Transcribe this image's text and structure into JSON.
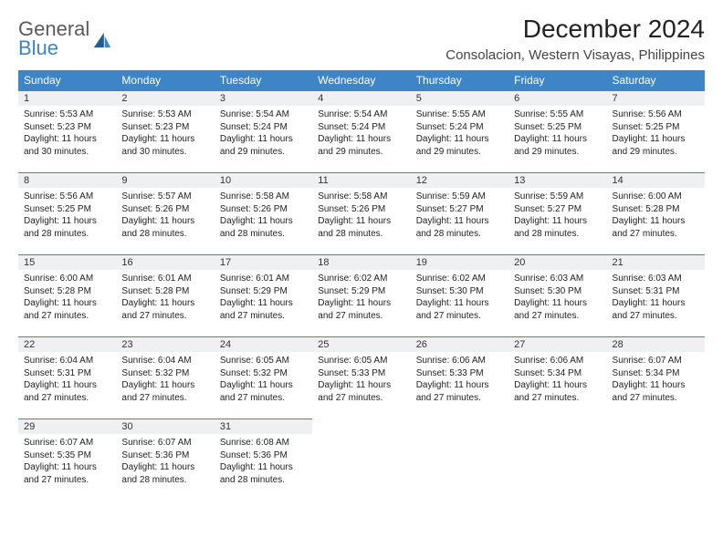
{
  "logo": {
    "line1": "General",
    "line2": "Blue"
  },
  "title": "December 2024",
  "location": "Consolacion, Western Visayas, Philippines",
  "colors": {
    "header_bg": "#3d85c6",
    "header_text": "#ffffff",
    "daynum_bg": "#eef0f1",
    "row_border": "#3d85c6",
    "logo_gray": "#5a5a5a",
    "logo_blue": "#3d85c6"
  },
  "weekdays": [
    "Sunday",
    "Monday",
    "Tuesday",
    "Wednesday",
    "Thursday",
    "Friday",
    "Saturday"
  ],
  "weeks": [
    [
      {
        "n": "1",
        "sr": "Sunrise: 5:53 AM",
        "ss": "Sunset: 5:23 PM",
        "d1": "Daylight: 11 hours",
        "d2": "and 30 minutes."
      },
      {
        "n": "2",
        "sr": "Sunrise: 5:53 AM",
        "ss": "Sunset: 5:23 PM",
        "d1": "Daylight: 11 hours",
        "d2": "and 30 minutes."
      },
      {
        "n": "3",
        "sr": "Sunrise: 5:54 AM",
        "ss": "Sunset: 5:24 PM",
        "d1": "Daylight: 11 hours",
        "d2": "and 29 minutes."
      },
      {
        "n": "4",
        "sr": "Sunrise: 5:54 AM",
        "ss": "Sunset: 5:24 PM",
        "d1": "Daylight: 11 hours",
        "d2": "and 29 minutes."
      },
      {
        "n": "5",
        "sr": "Sunrise: 5:55 AM",
        "ss": "Sunset: 5:24 PM",
        "d1": "Daylight: 11 hours",
        "d2": "and 29 minutes."
      },
      {
        "n": "6",
        "sr": "Sunrise: 5:55 AM",
        "ss": "Sunset: 5:25 PM",
        "d1": "Daylight: 11 hours",
        "d2": "and 29 minutes."
      },
      {
        "n": "7",
        "sr": "Sunrise: 5:56 AM",
        "ss": "Sunset: 5:25 PM",
        "d1": "Daylight: 11 hours",
        "d2": "and 29 minutes."
      }
    ],
    [
      {
        "n": "8",
        "sr": "Sunrise: 5:56 AM",
        "ss": "Sunset: 5:25 PM",
        "d1": "Daylight: 11 hours",
        "d2": "and 28 minutes."
      },
      {
        "n": "9",
        "sr": "Sunrise: 5:57 AM",
        "ss": "Sunset: 5:26 PM",
        "d1": "Daylight: 11 hours",
        "d2": "and 28 minutes."
      },
      {
        "n": "10",
        "sr": "Sunrise: 5:58 AM",
        "ss": "Sunset: 5:26 PM",
        "d1": "Daylight: 11 hours",
        "d2": "and 28 minutes."
      },
      {
        "n": "11",
        "sr": "Sunrise: 5:58 AM",
        "ss": "Sunset: 5:26 PM",
        "d1": "Daylight: 11 hours",
        "d2": "and 28 minutes."
      },
      {
        "n": "12",
        "sr": "Sunrise: 5:59 AM",
        "ss": "Sunset: 5:27 PM",
        "d1": "Daylight: 11 hours",
        "d2": "and 28 minutes."
      },
      {
        "n": "13",
        "sr": "Sunrise: 5:59 AM",
        "ss": "Sunset: 5:27 PM",
        "d1": "Daylight: 11 hours",
        "d2": "and 28 minutes."
      },
      {
        "n": "14",
        "sr": "Sunrise: 6:00 AM",
        "ss": "Sunset: 5:28 PM",
        "d1": "Daylight: 11 hours",
        "d2": "and 27 minutes."
      }
    ],
    [
      {
        "n": "15",
        "sr": "Sunrise: 6:00 AM",
        "ss": "Sunset: 5:28 PM",
        "d1": "Daylight: 11 hours",
        "d2": "and 27 minutes."
      },
      {
        "n": "16",
        "sr": "Sunrise: 6:01 AM",
        "ss": "Sunset: 5:28 PM",
        "d1": "Daylight: 11 hours",
        "d2": "and 27 minutes."
      },
      {
        "n": "17",
        "sr": "Sunrise: 6:01 AM",
        "ss": "Sunset: 5:29 PM",
        "d1": "Daylight: 11 hours",
        "d2": "and 27 minutes."
      },
      {
        "n": "18",
        "sr": "Sunrise: 6:02 AM",
        "ss": "Sunset: 5:29 PM",
        "d1": "Daylight: 11 hours",
        "d2": "and 27 minutes."
      },
      {
        "n": "19",
        "sr": "Sunrise: 6:02 AM",
        "ss": "Sunset: 5:30 PM",
        "d1": "Daylight: 11 hours",
        "d2": "and 27 minutes."
      },
      {
        "n": "20",
        "sr": "Sunrise: 6:03 AM",
        "ss": "Sunset: 5:30 PM",
        "d1": "Daylight: 11 hours",
        "d2": "and 27 minutes."
      },
      {
        "n": "21",
        "sr": "Sunrise: 6:03 AM",
        "ss": "Sunset: 5:31 PM",
        "d1": "Daylight: 11 hours",
        "d2": "and 27 minutes."
      }
    ],
    [
      {
        "n": "22",
        "sr": "Sunrise: 6:04 AM",
        "ss": "Sunset: 5:31 PM",
        "d1": "Daylight: 11 hours",
        "d2": "and 27 minutes."
      },
      {
        "n": "23",
        "sr": "Sunrise: 6:04 AM",
        "ss": "Sunset: 5:32 PM",
        "d1": "Daylight: 11 hours",
        "d2": "and 27 minutes."
      },
      {
        "n": "24",
        "sr": "Sunrise: 6:05 AM",
        "ss": "Sunset: 5:32 PM",
        "d1": "Daylight: 11 hours",
        "d2": "and 27 minutes."
      },
      {
        "n": "25",
        "sr": "Sunrise: 6:05 AM",
        "ss": "Sunset: 5:33 PM",
        "d1": "Daylight: 11 hours",
        "d2": "and 27 minutes."
      },
      {
        "n": "26",
        "sr": "Sunrise: 6:06 AM",
        "ss": "Sunset: 5:33 PM",
        "d1": "Daylight: 11 hours",
        "d2": "and 27 minutes."
      },
      {
        "n": "27",
        "sr": "Sunrise: 6:06 AM",
        "ss": "Sunset: 5:34 PM",
        "d1": "Daylight: 11 hours",
        "d2": "and 27 minutes."
      },
      {
        "n": "28",
        "sr": "Sunrise: 6:07 AM",
        "ss": "Sunset: 5:34 PM",
        "d1": "Daylight: 11 hours",
        "d2": "and 27 minutes."
      }
    ],
    [
      {
        "n": "29",
        "sr": "Sunrise: 6:07 AM",
        "ss": "Sunset: 5:35 PM",
        "d1": "Daylight: 11 hours",
        "d2": "and 27 minutes."
      },
      {
        "n": "30",
        "sr": "Sunrise: 6:07 AM",
        "ss": "Sunset: 5:36 PM",
        "d1": "Daylight: 11 hours",
        "d2": "and 28 minutes."
      },
      {
        "n": "31",
        "sr": "Sunrise: 6:08 AM",
        "ss": "Sunset: 5:36 PM",
        "d1": "Daylight: 11 hours",
        "d2": "and 28 minutes."
      },
      {
        "empty": true
      },
      {
        "empty": true
      },
      {
        "empty": true
      },
      {
        "empty": true
      }
    ]
  ]
}
